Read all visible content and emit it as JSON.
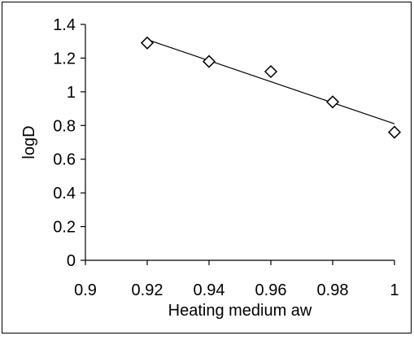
{
  "chart_data": {
    "type": "scatter",
    "xlabel": "Heating medium aw",
    "ylabel": "logD",
    "xlim": [
      0.9,
      1.0
    ],
    "ylim": [
      0,
      1.4
    ],
    "x_ticks": [
      0.9,
      0.92,
      0.94,
      0.96,
      0.98,
      1
    ],
    "x_tick_labels": [
      "0.9",
      "0.92",
      "0.94",
      "0.96",
      "0.98",
      "1"
    ],
    "y_ticks": [
      0,
      0.2,
      0.4,
      0.6,
      0.8,
      1,
      1.2,
      1.4
    ],
    "y_tick_labels": [
      "0",
      "0.2",
      "0.4",
      "0.6",
      "0.8",
      "1",
      "1.2",
      "1.4"
    ],
    "grid": false,
    "legend": "none",
    "series": [
      {
        "marker": "open-diamond",
        "x": [
          0.92,
          0.94,
          0.96,
          0.98,
          1.0
        ],
        "y": [
          1.29,
          1.18,
          1.12,
          0.94,
          0.76
        ]
      }
    ],
    "trendline": {
      "type": "linear",
      "x": [
        0.92,
        1.0
      ],
      "y": [
        1.31,
        0.81
      ]
    },
    "colors": {
      "marks": "#000000",
      "background": "#ffffff"
    }
  }
}
